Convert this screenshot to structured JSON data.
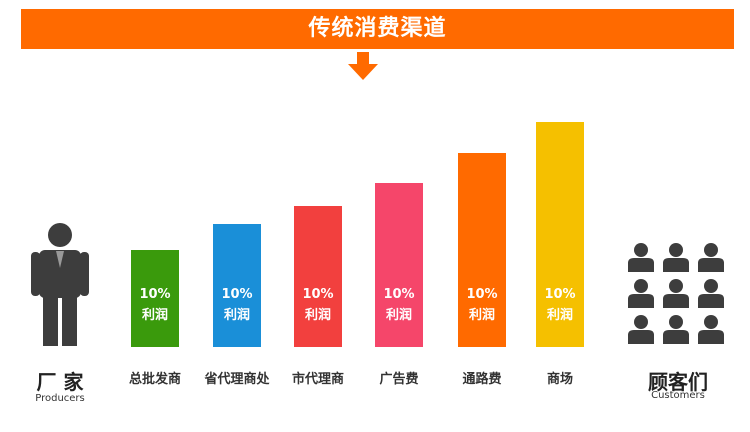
{
  "header": {
    "title": "传统消费渠道"
  },
  "left": {
    "title": "厂 家",
    "subtitle": "Producers"
  },
  "right": {
    "title": "顾客们",
    "subtitle": "Customers"
  },
  "colors": {
    "banner": "#ff6a00",
    "bars": [
      "#3a9a0c",
      "#1a8fd8",
      "#f2403e",
      "#f5466a",
      "#ff6a00",
      "#f5c000"
    ],
    "icon": "#3d3d3d"
  },
  "steps": [
    {
      "label": "总批发商",
      "pct": "10%",
      "note": "利润",
      "level": 1
    },
    {
      "label": "省代理商处",
      "pct": "10%",
      "note": "利润",
      "level": 2
    },
    {
      "label": "市代理商",
      "pct": "10%",
      "note": "利润",
      "level": 3
    },
    {
      "label": "广告费",
      "pct": "10%",
      "note": "利润",
      "level": 4
    },
    {
      "label": "通路费",
      "pct": "10%",
      "note": "利润",
      "level": 5
    },
    {
      "label": "商场",
      "pct": "10%",
      "note": "利润",
      "level": 6
    }
  ],
  "icons": {
    "left": "producer-person-icon",
    "right": "customers-crowd-icon",
    "arrow": "down-arrow-icon"
  }
}
